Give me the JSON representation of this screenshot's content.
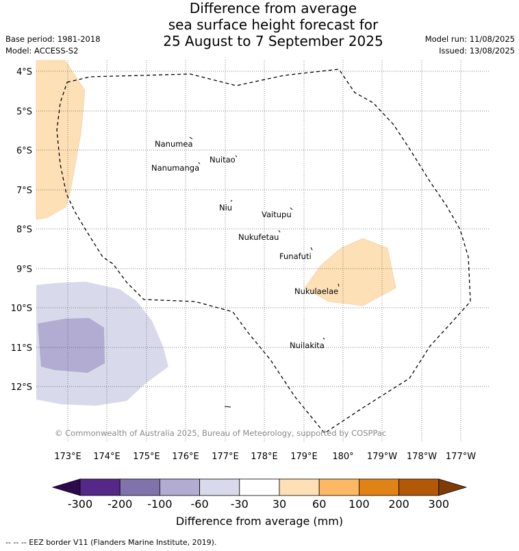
{
  "title": {
    "line1": "Difference from average",
    "line2": "sea surface height forecast for",
    "line3": "25 August to 7 September 2025"
  },
  "meta": {
    "base_period": "Base period: 1981-2018",
    "model": "Model: ACCESS-S2",
    "model_run": "Model run: 11/08/2025",
    "issued": "Issued: 13/08/2025"
  },
  "map": {
    "lat_labels": [
      "4°S",
      "5°S",
      "6°S",
      "7°S",
      "8°S",
      "9°S",
      "10°S",
      "11°S",
      "12°S"
    ],
    "lon_labels": [
      "173°E",
      "174°E",
      "175°E",
      "176°E",
      "177°E",
      "178°E",
      "179°E",
      "180°",
      "179°W",
      "178°W",
      "177°W"
    ],
    "places": [
      "Nanumea",
      "Nuitao",
      "Nanumanga",
      "Niu",
      "Vaitupu",
      "Nukufetau",
      "Funafuti",
      "Nukulaelae",
      "Nuilakita"
    ],
    "copyright": "© Commonwealth of Australia 2025, Bureau of Meteorology, supported by COSPPac",
    "colors": {
      "neg300": "#2d0a4e",
      "neg200": "#542788",
      "neg100": "#8073ac",
      "neg60": "#b2abd2",
      "neg30": "#d8daeb",
      "zero": "#ffffff",
      "pos30": "#fee0b6",
      "pos60": "#fdb863",
      "pos100": "#e08214",
      "pos200": "#b35806",
      "pos300": "#7f3b08"
    }
  },
  "colorbar": {
    "ticks": [
      "-300",
      "-200",
      "-100",
      "-60",
      "-30",
      "30",
      "60",
      "100",
      "200",
      "300"
    ],
    "label": "Difference from average (mm)"
  },
  "footer": "--  --  -- EEZ border V11 (Flanders Marine Institute, 2019)."
}
